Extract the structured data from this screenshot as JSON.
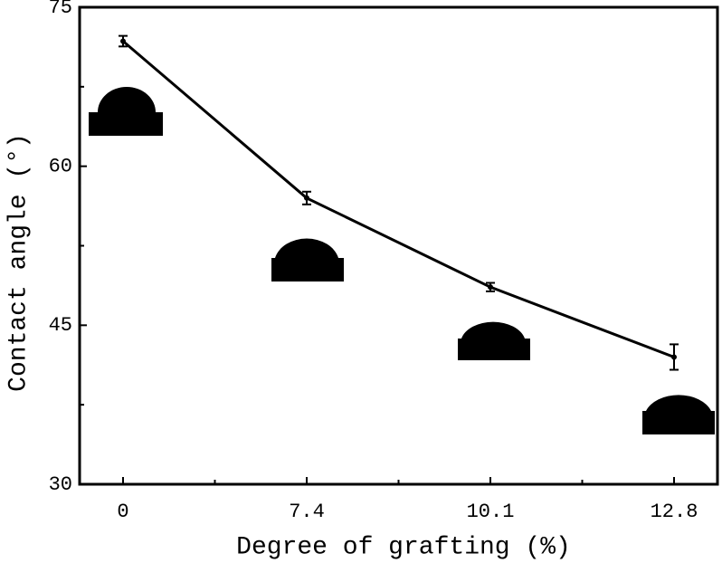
{
  "chart_data": {
    "type": "line",
    "x_label": "Degree of grafting (%)",
    "y_label": "Contact angle (°)",
    "categories": [
      "0",
      "7.4",
      "10.1",
      "12.8"
    ],
    "values": [
      71.8,
      57.0,
      48.6,
      42.0
    ],
    "errors": [
      0.5,
      0.6,
      0.4,
      1.2
    ],
    "color": "#000000",
    "ylim": [
      30,
      75
    ],
    "yticks": [
      30,
      45,
      60,
      75
    ],
    "minor_yticks": [
      37.5,
      52.5,
      67.5
    ]
  }
}
